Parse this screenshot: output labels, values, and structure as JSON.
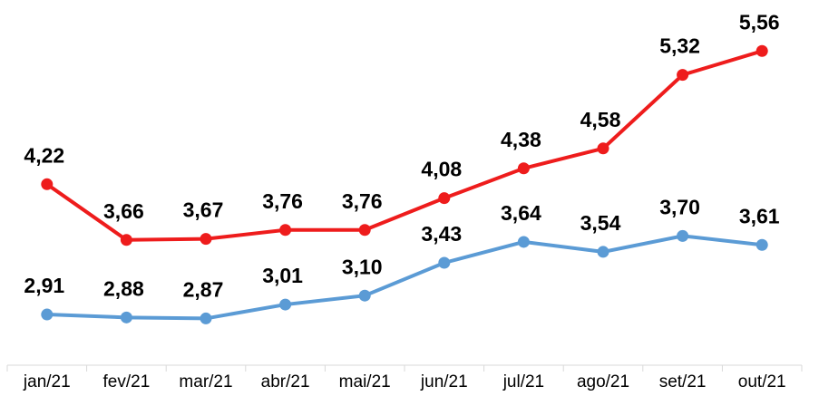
{
  "chart_data": {
    "type": "line",
    "categories": [
      "jan/21",
      "fev/21",
      "mar/21",
      "abr/21",
      "mai/21",
      "jun/21",
      "jul/21",
      "ago/21",
      "set/21",
      "out/21"
    ],
    "series": [
      {
        "color": "#ee1c1c",
        "values": [
          4.22,
          3.66,
          3.67,
          3.76,
          3.76,
          4.08,
          4.38,
          4.58,
          5.32,
          5.56
        ],
        "value_labels": [
          "4,22",
          "3,66",
          "3,67",
          "3,76",
          "3,76",
          "4,08",
          "4,38",
          "4,58",
          "5,32",
          "5,56"
        ]
      },
      {
        "color": "#5b9bd5",
        "values": [
          2.91,
          2.88,
          2.87,
          3.01,
          3.1,
          3.43,
          3.64,
          3.54,
          3.7,
          3.61
        ],
        "value_labels": [
          "2,91",
          "2,88",
          "2,87",
          "3,01",
          "3,10",
          "3,43",
          "3,64",
          "3,54",
          "3,70",
          "3,61"
        ]
      }
    ],
    "ylim": [
      2.4,
      6.0
    ]
  }
}
